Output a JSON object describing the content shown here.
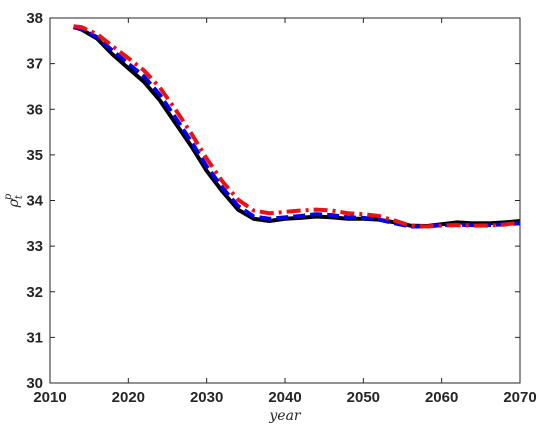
{
  "chart_data": {
    "type": "line",
    "title": "",
    "xlabel": "year",
    "ylabel": "ρ_t^p",
    "xlim": [
      2010,
      2070
    ],
    "ylim": [
      30,
      38
    ],
    "xticks": [
      2010,
      2020,
      2030,
      2040,
      2050,
      2060,
      2070
    ],
    "yticks": [
      30,
      31,
      32,
      33,
      34,
      35,
      36,
      37,
      38
    ],
    "grid": false,
    "legend": "none",
    "series": [
      {
        "color": "#000000",
        "style": "solid",
        "x": [
          2013,
          2014,
          2016,
          2018,
          2020,
          2022,
          2024,
          2026,
          2028,
          2030,
          2032,
          2034,
          2036,
          2038,
          2040,
          2042,
          2044,
          2046,
          2048,
          2050,
          2052,
          2054,
          2056,
          2058,
          2060,
          2062,
          2064,
          2066,
          2068,
          2070
        ],
        "values": [
          37.8,
          37.75,
          37.55,
          37.2,
          36.9,
          36.6,
          36.2,
          35.7,
          35.2,
          34.65,
          34.2,
          33.8,
          33.6,
          33.55,
          33.6,
          33.62,
          33.65,
          33.63,
          33.6,
          33.6,
          33.58,
          33.52,
          33.45,
          33.44,
          33.48,
          33.52,
          33.5,
          33.5,
          33.52,
          33.55
        ]
      },
      {
        "color": "#0000ee",
        "style": "dashed",
        "x": [
          2013,
          2014,
          2016,
          2018,
          2020,
          2022,
          2024,
          2026,
          2028,
          2030,
          2032,
          2034,
          2036,
          2038,
          2040,
          2042,
          2044,
          2046,
          2048,
          2050,
          2052,
          2054,
          2056,
          2058,
          2060,
          2062,
          2064,
          2066,
          2068,
          2070
        ],
        "values": [
          37.8,
          37.76,
          37.58,
          37.28,
          37.0,
          36.72,
          36.32,
          35.82,
          35.3,
          34.75,
          34.28,
          33.88,
          33.65,
          33.6,
          33.63,
          33.66,
          33.7,
          33.68,
          33.63,
          33.62,
          33.58,
          33.5,
          33.43,
          33.43,
          33.46,
          33.47,
          33.46,
          33.46,
          33.48,
          33.5
        ]
      },
      {
        "color": "#ee1111",
        "style": "dashdot",
        "x": [
          2013,
          2014,
          2016,
          2018,
          2020,
          2022,
          2024,
          2026,
          2028,
          2030,
          2032,
          2034,
          2036,
          2038,
          2040,
          2042,
          2044,
          2046,
          2048,
          2050,
          2052,
          2054,
          2056,
          2058,
          2060,
          2062,
          2064,
          2066,
          2068,
          2070
        ],
        "values": [
          37.82,
          37.8,
          37.65,
          37.38,
          37.12,
          36.85,
          36.48,
          36.0,
          35.48,
          34.92,
          34.42,
          34.02,
          33.78,
          33.72,
          33.75,
          33.78,
          33.8,
          33.78,
          33.72,
          33.7,
          33.66,
          33.56,
          33.45,
          33.43,
          33.45,
          33.46,
          33.45,
          33.45,
          33.47,
          33.52
        ]
      }
    ]
  }
}
